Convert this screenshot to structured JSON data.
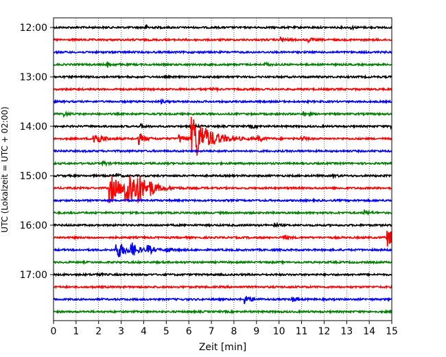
{
  "chart_data": {
    "type": "line",
    "title": "",
    "xlabel": "Zeit  [min]",
    "ylabel": "UTC (Lokalzeit = UTC + 02:00)",
    "xlim": [
      0,
      15
    ],
    "x_ticks": [
      "0",
      "1",
      "2",
      "3",
      "4",
      "5",
      "6",
      "7",
      "8",
      "9",
      "10",
      "11",
      "12",
      "13",
      "14",
      "15"
    ],
    "y_hour_labels": [
      "12:00",
      "13:00",
      "14:00",
      "15:00",
      "16:00",
      "17:00"
    ],
    "grid": "vertical dotted lines at each minute",
    "trace_colors": [
      "#000000",
      "#ff0000",
      "#0000ff",
      "#007f00"
    ],
    "traces": [
      {
        "start": "12:00",
        "color": "#000000",
        "events": [
          {
            "x": 4.1,
            "amp": 0.2
          },
          {
            "x": 13.2,
            "amp": 0.15
          }
        ]
      },
      {
        "start": "12:15",
        "color": "#ff0000",
        "events": [
          {
            "x": 10.1,
            "amp": 0.3
          },
          {
            "x": 11.3,
            "amp": 0.25
          }
        ]
      },
      {
        "start": "12:30",
        "color": "#0000ff",
        "events": []
      },
      {
        "start": "12:45",
        "color": "#007f00",
        "events": [
          {
            "x": 2.4,
            "amp": 0.3
          },
          {
            "x": 9.4,
            "amp": 0.2
          }
        ]
      },
      {
        "start": "13:00",
        "color": "#000000",
        "events": []
      },
      {
        "start": "13:15",
        "color": "#ff0000",
        "events": [
          {
            "x": 7.0,
            "amp": 0.15
          }
        ]
      },
      {
        "start": "13:30",
        "color": "#0000ff",
        "events": [
          {
            "x": 4.8,
            "amp": 0.15
          }
        ]
      },
      {
        "start": "13:45",
        "color": "#007f00",
        "events": [
          {
            "x": 0.5,
            "amp": 0.2
          },
          {
            "x": 11.1,
            "amp": 0.25
          }
        ]
      },
      {
        "start": "14:00",
        "color": "#000000",
        "events": [
          {
            "x": 3.9,
            "amp": 0.2
          },
          {
            "x": 6.1,
            "amp": 0.3
          },
          {
            "x": 8.8,
            "amp": 0.2
          },
          {
            "x": 15.0,
            "amp": 0.4
          }
        ]
      },
      {
        "start": "14:15",
        "color": "#ff0000",
        "events": [
          {
            "x": 1.8,
            "amp": 0.9
          },
          {
            "x": 3.8,
            "amp": 0.6
          },
          {
            "x": 5.6,
            "amp": 0.5
          },
          {
            "x": 6.15,
            "amp": 3.0
          },
          {
            "x": 9.1,
            "amp": 0.3
          },
          {
            "x": 11.0,
            "amp": 0.3
          }
        ]
      },
      {
        "start": "14:30",
        "color": "#0000ff",
        "events": []
      },
      {
        "start": "14:45",
        "color": "#007f00",
        "events": [
          {
            "x": 2.2,
            "amp": 0.25
          }
        ]
      },
      {
        "start": "15:00",
        "color": "#000000",
        "events": [
          {
            "x": 2.8,
            "amp": 0.2
          },
          {
            "x": 12.4,
            "amp": 0.15
          }
        ]
      },
      {
        "start": "15:15",
        "color": "#ff0000",
        "events": [
          {
            "x": 2.5,
            "amp": 1.8
          },
          {
            "x": 3.2,
            "amp": 2.5
          },
          {
            "x": 3.7,
            "amp": 1.0
          },
          {
            "x": 4.3,
            "amp": 0.5
          }
        ]
      },
      {
        "start": "15:30",
        "color": "#0000ff",
        "events": []
      },
      {
        "start": "15:45",
        "color": "#007f00",
        "events": [
          {
            "x": 13.8,
            "amp": 0.3
          }
        ]
      },
      {
        "start": "16:00",
        "color": "#000000",
        "events": [
          {
            "x": 9.8,
            "amp": 0.2
          }
        ]
      },
      {
        "start": "16:15",
        "color": "#ff0000",
        "events": [
          {
            "x": 10.2,
            "amp": 0.25
          },
          {
            "x": 14.8,
            "amp": 1.1
          }
        ]
      },
      {
        "start": "16:30",
        "color": "#0000ff",
        "events": [
          {
            "x": 2.8,
            "amp": 1.2
          },
          {
            "x": 3.4,
            "amp": 0.9
          },
          {
            "x": 4.2,
            "amp": 0.5
          },
          {
            "x": 5.0,
            "amp": 0.3
          }
        ]
      },
      {
        "start": "16:45",
        "color": "#007f00",
        "events": []
      },
      {
        "start": "17:00",
        "color": "#000000",
        "events": [
          {
            "x": 1.9,
            "amp": 0.2
          }
        ]
      },
      {
        "start": "17:15",
        "color": "#ff0000",
        "events": []
      },
      {
        "start": "17:30",
        "color": "#0000ff",
        "events": [
          {
            "x": 8.5,
            "amp": 0.5
          },
          {
            "x": 10.6,
            "amp": 0.3
          }
        ]
      },
      {
        "start": "17:45",
        "color": "#007f00",
        "events": []
      }
    ]
  }
}
